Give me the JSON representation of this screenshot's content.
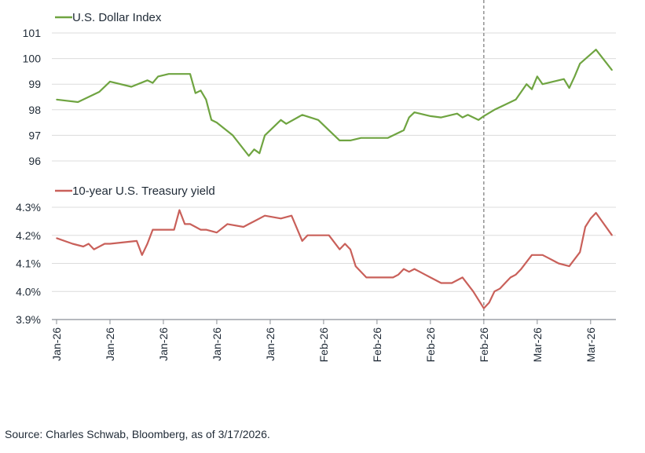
{
  "chart_data": [
    {
      "type": "line",
      "title": "U.S. Dollar Index",
      "legend": "U.S. Dollar Index",
      "color": "#6fa441",
      "ylim": [
        96,
        101
      ],
      "yticks": [
        96,
        97,
        98,
        99,
        100,
        101
      ],
      "ytick_labels": [
        "96",
        "97",
        "98",
        "99",
        "100",
        "101"
      ],
      "grid": true,
      "x": [
        0,
        4,
        7,
        8,
        10,
        14,
        17,
        18,
        19,
        21,
        23,
        25,
        26,
        27,
        28,
        29,
        30,
        33,
        36,
        37,
        38,
        39,
        40,
        42,
        43,
        46,
        49,
        51,
        53,
        55,
        56,
        57,
        58,
        60,
        62,
        65,
        66,
        67,
        69,
        70,
        72,
        75,
        76,
        77,
        79,
        80,
        82,
        86,
        88,
        89,
        90,
        91,
        92,
        95,
        96,
        97,
        98,
        101,
        104
      ],
      "values": [
        98.4,
        98.3,
        98.6,
        98.7,
        99.1,
        98.9,
        99.15,
        99.05,
        99.3,
        99.4,
        99.4,
        99.4,
        98.65,
        98.75,
        98.4,
        97.6,
        97.5,
        97.0,
        96.2,
        96.45,
        96.3,
        97.0,
        97.2,
        97.6,
        97.45,
        97.8,
        97.6,
        97.2,
        96.8,
        96.8,
        96.85,
        96.9,
        96.9,
        96.9,
        96.9,
        97.2,
        97.7,
        97.9,
        97.8,
        97.75,
        97.7,
        97.85,
        97.7,
        97.8,
        97.6,
        97.75,
        98.0,
        98.4,
        99.0,
        98.8,
        99.3,
        99.0,
        99.05,
        99.2,
        98.85,
        99.3,
        99.8,
        100.35,
        99.55
      ]
    },
    {
      "type": "line",
      "title": "10-year U.S. Treasury yield",
      "legend": "10-year U.S. Treasury yield",
      "color": "#c9605a",
      "ylim": [
        3.9,
        4.3
      ],
      "yticks": [
        3.9,
        4.0,
        4.1,
        4.2,
        4.3
      ],
      "ytick_labels": [
        "3.9%",
        "4.0%",
        "4.1%",
        "4.2%",
        "4.3%"
      ],
      "grid": true,
      "x": [
        0,
        3,
        5,
        6,
        7,
        9,
        10,
        15,
        16,
        17,
        18,
        19,
        22,
        23,
        24,
        25,
        26,
        27,
        28,
        30,
        32,
        35,
        36,
        37,
        39,
        42,
        44,
        46,
        47,
        48,
        50,
        51,
        53,
        54,
        55,
        56,
        58,
        59,
        61,
        63,
        64,
        65,
        66,
        67,
        68,
        69,
        70,
        72,
        74,
        76,
        78,
        80,
        81,
        82,
        83,
        84,
        85,
        86,
        87,
        89,
        91,
        92,
        93,
        94,
        96,
        98,
        99,
        100,
        101,
        104
      ],
      "values": [
        4.19,
        4.17,
        4.16,
        4.17,
        4.15,
        4.17,
        4.17,
        4.18,
        4.13,
        4.17,
        4.22,
        4.22,
        4.22,
        4.29,
        4.24,
        4.24,
        4.23,
        4.22,
        4.22,
        4.21,
        4.24,
        4.23,
        4.24,
        4.25,
        4.27,
        4.26,
        4.27,
        4.18,
        4.2,
        4.2,
        4.2,
        4.2,
        4.15,
        4.17,
        4.15,
        4.09,
        4.05,
        4.05,
        4.05,
        4.05,
        4.06,
        4.08,
        4.07,
        4.08,
        4.07,
        4.06,
        4.05,
        4.03,
        4.03,
        4.05,
        4.0,
        3.94,
        3.96,
        4.0,
        4.01,
        4.03,
        4.05,
        4.06,
        4.08,
        4.13,
        4.13,
        4.12,
        4.11,
        4.1,
        4.09,
        4.14,
        4.23,
        4.26,
        4.28,
        4.2
      ]
    }
  ],
  "x_axis": {
    "tick_labels": [
      "Jan-26",
      "Jan-26",
      "Jan-26",
      "Jan-26",
      "Jan-26",
      "Feb-26",
      "Feb-26",
      "Feb-26",
      "Feb-26",
      "Mar-26",
      "Mar-26"
    ],
    "tick_positions": [
      0,
      10,
      20,
      30,
      40,
      50,
      60,
      70,
      80,
      90,
      100
    ],
    "range": [
      0,
      104
    ],
    "marker_x": 80
  },
  "source": "Source: Charles Schwab, Bloomberg, as of 3/17/2026."
}
